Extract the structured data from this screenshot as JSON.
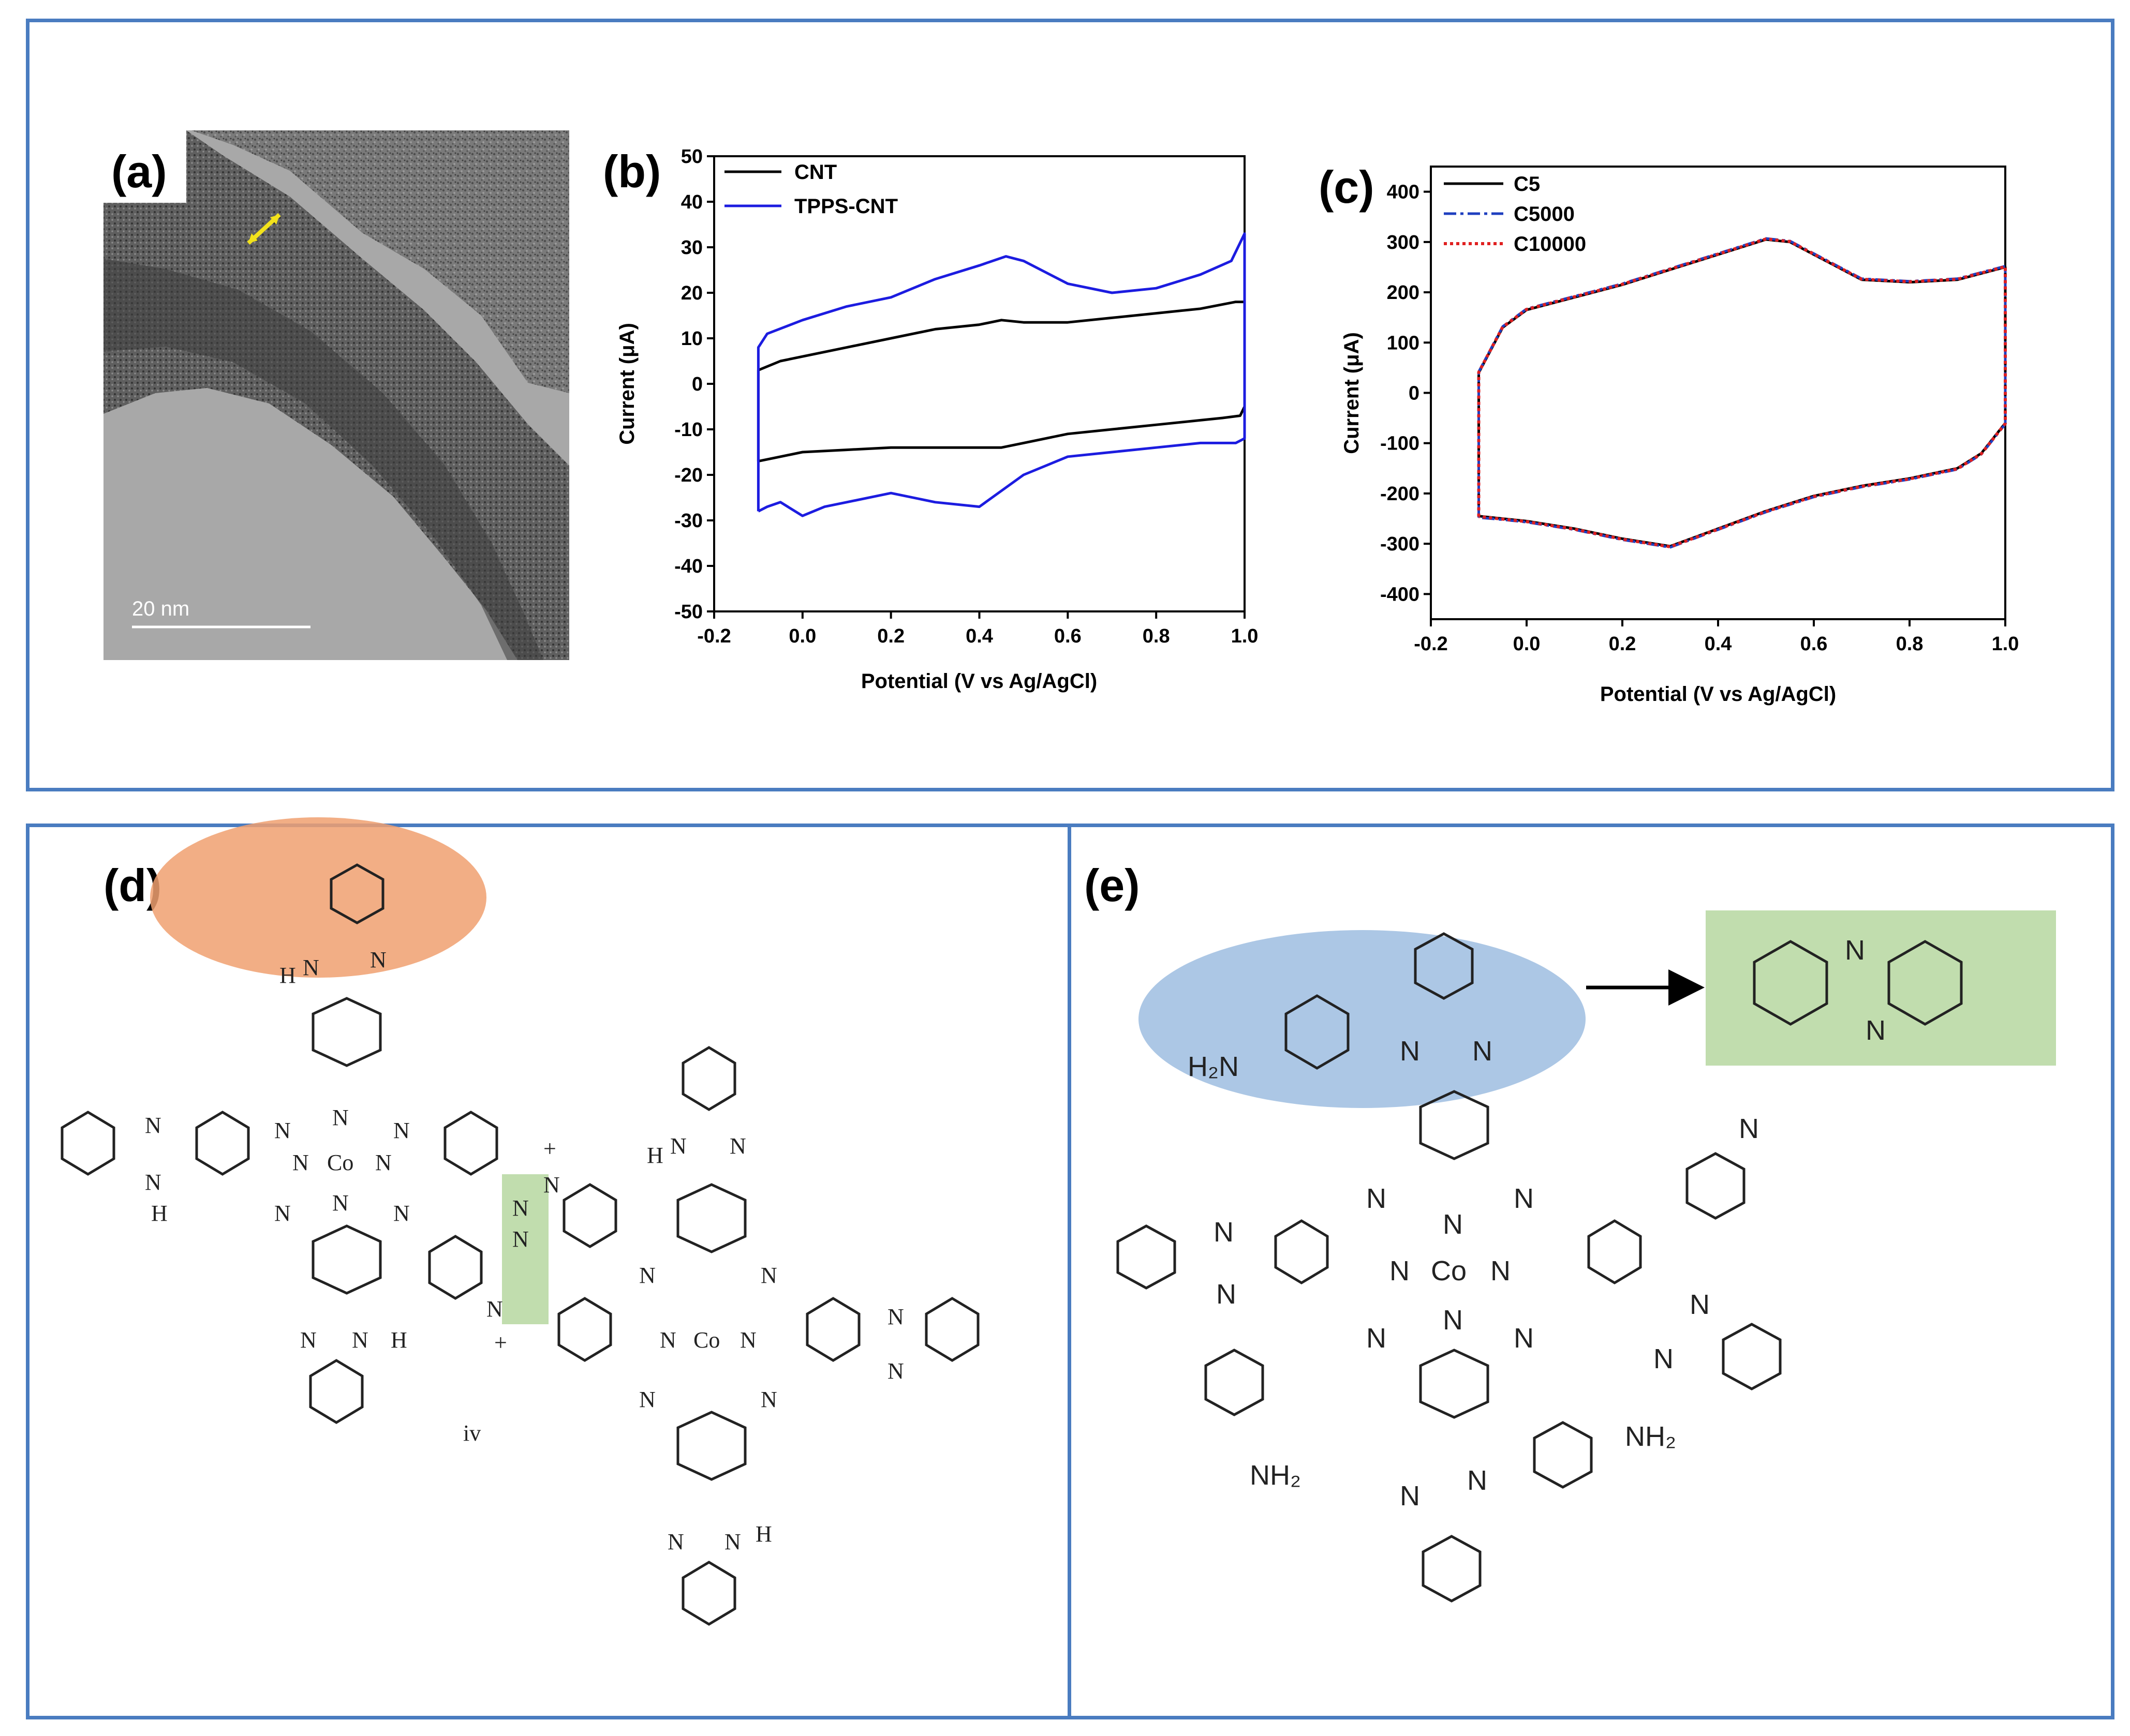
{
  "panels": {
    "a": {
      "label": "(a)",
      "scale_bar": "20 nm"
    },
    "b": {
      "label": "(b)"
    },
    "c": {
      "label": "(c)"
    },
    "d": {
      "label": "(d)",
      "roman": "iv"
    },
    "e": {
      "label": "(e)"
    }
  },
  "chem_labels": {
    "co": "Co",
    "n": "N",
    "h": "H",
    "nh": "N·H",
    "nh2_text": "NH₂",
    "h2n_text": "H₂N",
    "plus": "+"
  },
  "colors": {
    "frame": "#4a7cc0",
    "cnt": "#000000",
    "tpps": "#1c1ce0",
    "c5": "#000000",
    "c5000": "#1f3fbf",
    "c10000": "#e02020",
    "highlight_orange": "#f0a070",
    "highlight_green": "#b6d7a0",
    "highlight_blue": "#9dbde0"
  },
  "chart_data": [
    {
      "id": "b",
      "type": "line",
      "xlabel": "Potential (V vs Ag/AgCl)",
      "ylabel": "Current (μA)",
      "xlim": [
        -0.2,
        1.0
      ],
      "ylim": [
        -50,
        50
      ],
      "xticks": [
        "-0.2",
        "0.0",
        "0.2",
        "0.4",
        "0.6",
        "0.8",
        "1.0"
      ],
      "yticks": [
        "50",
        "40",
        "30",
        "20",
        "10",
        "0",
        "-10",
        "-20",
        "-30",
        "-40",
        "-50"
      ],
      "legend_position": "top-left",
      "series": [
        {
          "name": "CNT",
          "x": [
            -0.1,
            -0.1,
            -0.05,
            0.1,
            0.2,
            0.3,
            0.4,
            0.45,
            0.5,
            0.6,
            0.7,
            0.8,
            0.9,
            0.98,
            1.0,
            1.0,
            0.99,
            0.95,
            0.9,
            0.8,
            0.7,
            0.6,
            0.5,
            0.45,
            0.4,
            0.3,
            0.2,
            0.1,
            0.0,
            -0.05,
            -0.1
          ],
          "y": [
            -17,
            3,
            5,
            8,
            10,
            12,
            13,
            14,
            13.5,
            13.5,
            14.5,
            15.5,
            16.5,
            18,
            18,
            -5,
            -7,
            -7.5,
            -8,
            -9,
            -10,
            -11,
            -13,
            -14,
            -14,
            -14,
            -14,
            -14.5,
            -15,
            -16,
            -17
          ]
        },
        {
          "name": "TPPS-CNT",
          "x": [
            -0.1,
            -0.1,
            -0.08,
            0.0,
            0.1,
            0.2,
            0.3,
            0.4,
            0.46,
            0.5,
            0.6,
            0.7,
            0.8,
            0.9,
            0.97,
            1.0,
            1.0,
            0.98,
            0.95,
            0.9,
            0.8,
            0.7,
            0.6,
            0.5,
            0.4,
            0.3,
            0.2,
            0.1,
            0.05,
            0.0,
            -0.05,
            -0.08,
            -0.1
          ],
          "y": [
            -28,
            8,
            11,
            14,
            17,
            19,
            23,
            26,
            28,
            27,
            22,
            20,
            21,
            24,
            27,
            33,
            -12,
            -13,
            -13,
            -13,
            -14,
            -15,
            -16,
            -20,
            -27,
            -26,
            -24,
            -26,
            -27,
            -29,
            -26,
            -27,
            -28
          ]
        }
      ]
    },
    {
      "id": "c",
      "type": "line",
      "xlabel": "Potential (V vs Ag/AgCl)",
      "ylabel": "Current (μA)",
      "xlim": [
        -0.2,
        1.0
      ],
      "ylim": [
        -450,
        450
      ],
      "xticks": [
        "-0.2",
        "0.0",
        "0.2",
        "0.4",
        "0.6",
        "0.8",
        "1.0"
      ],
      "yticks": [
        "400",
        "300",
        "200",
        "100",
        "0",
        "-100",
        "-200",
        "-300",
        "-400"
      ],
      "legend_position": "top-left",
      "series": [
        {
          "name": "C5",
          "x": [
            -0.1,
            -0.1,
            -0.05,
            0.0,
            0.1,
            0.2,
            0.3,
            0.4,
            0.5,
            0.55,
            0.6,
            0.7,
            0.8,
            0.9,
            1.0,
            1.0,
            0.95,
            0.9,
            0.8,
            0.7,
            0.6,
            0.5,
            0.4,
            0.3,
            0.2,
            0.1,
            0.0,
            -0.05,
            -0.1
          ],
          "y": [
            -245,
            40,
            130,
            165,
            190,
            215,
            245,
            275,
            305,
            300,
            275,
            225,
            220,
            225,
            250,
            -60,
            -120,
            -150,
            -170,
            -185,
            -205,
            -235,
            -270,
            -305,
            -290,
            -270,
            -255,
            -250,
            -245
          ]
        },
        {
          "name": "C5000",
          "x": [
            -0.1,
            -0.1,
            -0.05,
            0.0,
            0.1,
            0.2,
            0.3,
            0.4,
            0.5,
            0.55,
            0.6,
            0.7,
            0.8,
            0.9,
            1.0,
            1.0,
            0.95,
            0.9,
            0.8,
            0.7,
            0.6,
            0.5,
            0.4,
            0.3,
            0.2,
            0.1,
            0.0,
            -0.05,
            -0.1
          ],
          "y": [
            -248,
            42,
            132,
            167,
            192,
            217,
            247,
            277,
            307,
            302,
            277,
            227,
            222,
            227,
            252,
            -62,
            -122,
            -152,
            -172,
            -187,
            -207,
            -237,
            -272,
            -307,
            -292,
            -272,
            -257,
            -252,
            -248
          ]
        },
        {
          "name": "C10000",
          "x": [
            -0.1,
            -0.1,
            -0.05,
            0.0,
            0.1,
            0.2,
            0.3,
            0.4,
            0.5,
            0.55,
            0.6,
            0.7,
            0.8,
            0.9,
            1.0,
            1.0,
            0.95,
            0.9,
            0.8,
            0.7,
            0.6,
            0.5,
            0.4,
            0.3,
            0.2,
            0.1,
            0.0,
            -0.05,
            -0.1
          ],
          "y": [
            -246,
            41,
            131,
            166,
            191,
            216,
            246,
            276,
            306,
            301,
            276,
            226,
            221,
            226,
            251,
            -61,
            -121,
            -151,
            -171,
            -186,
            -206,
            -236,
            -271,
            -306,
            -291,
            -271,
            -256,
            -251,
            -246
          ]
        }
      ]
    }
  ]
}
